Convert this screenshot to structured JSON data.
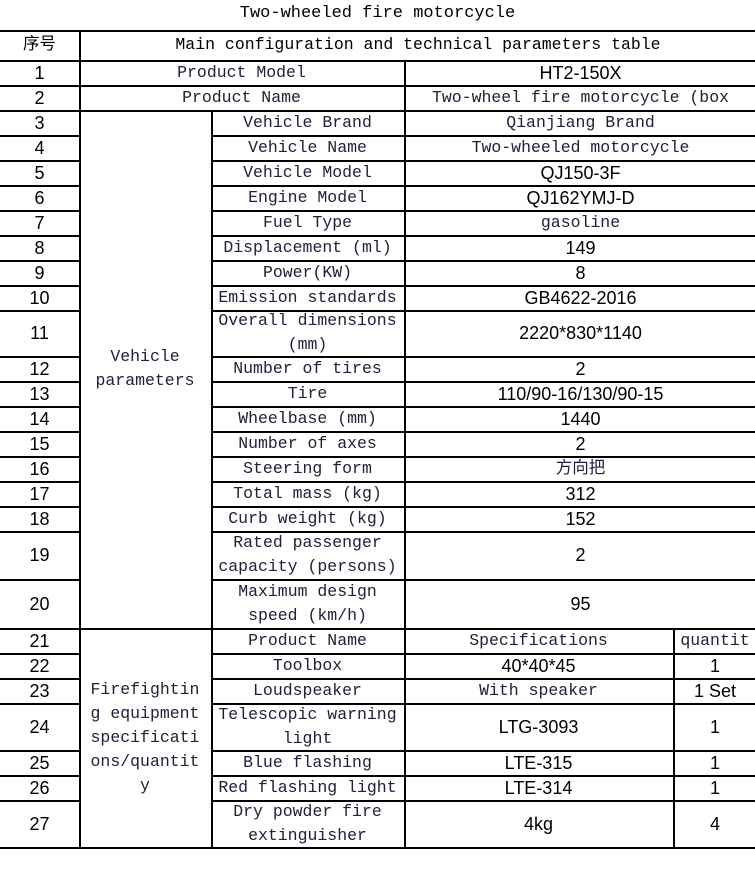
{
  "title": "Two-wheeled fire motorcycle",
  "header": {
    "no": "序号",
    "main": "Main configuration and technical parameters table"
  },
  "top_rows": [
    {
      "no": "1",
      "label": "Product Model",
      "value": "HT2-150X"
    },
    {
      "no": "2",
      "label": "Product Name",
      "value": "Two-wheel fire motorcycle (box"
    }
  ],
  "vehicle": {
    "group": "Vehicle parameters",
    "rows": [
      {
        "no": "3",
        "label": "Vehicle Brand",
        "value": "Qianjiang Brand"
      },
      {
        "no": "4",
        "label": "Vehicle Name",
        "value": "Two-wheeled motorcycle"
      },
      {
        "no": "5",
        "label": "Vehicle Model",
        "value": "QJ150-3F"
      },
      {
        "no": "6",
        "label": "Engine Model",
        "value": "QJ162YMJ-D"
      },
      {
        "no": "7",
        "label": "Fuel Type",
        "value": "gasoline"
      },
      {
        "no": "8",
        "label": "Displacement (ml)",
        "value": "149"
      },
      {
        "no": "9",
        "label": "Power(KW)",
        "value": "8"
      },
      {
        "no": "10",
        "label": "Emission standards",
        "value": "GB4622-2016"
      },
      {
        "no": "11",
        "label": "Overall dimensions (mm)",
        "value": "2220*830*1140"
      },
      {
        "no": "12",
        "label": "Number of tires",
        "value": "2"
      },
      {
        "no": "13",
        "label": "Tire",
        "value": "110/90-16/130/90-15"
      },
      {
        "no": "14",
        "label": "Wheelbase (mm)",
        "value": "1440"
      },
      {
        "no": "15",
        "label": "Number of axes",
        "value": "2"
      },
      {
        "no": "16",
        "label": "Steering form",
        "value": "方向把"
      },
      {
        "no": "17",
        "label": "Total mass (kg)",
        "value": "312"
      },
      {
        "no": "18",
        "label": "Curb weight (kg)",
        "value": "152"
      },
      {
        "no": "19",
        "label": "Rated passenger capacity (persons)",
        "value": "2"
      },
      {
        "no": "20",
        "label": "Maximum design speed (km/h)",
        "value": "95"
      }
    ]
  },
  "equipment": {
    "group": "Firefighting equipment specifications/quantity",
    "rows": [
      {
        "no": "21",
        "label": "Product Name",
        "spec": "Specifications",
        "qty": "quantit"
      },
      {
        "no": "22",
        "label": "Toolbox",
        "spec": "40*40*45",
        "qty": "1"
      },
      {
        "no": "23",
        "label": "Loudspeaker",
        "spec": "With speaker",
        "qty": "1 Set"
      },
      {
        "no": "24",
        "label": "Telescopic warning light",
        "spec": "LTG-3093",
        "qty": "1"
      },
      {
        "no": "25",
        "label": "Blue flashing",
        "spec": "LTE-315",
        "qty": "1"
      },
      {
        "no": "26",
        "label": "Red flashing light",
        "spec": "LTE-314",
        "qty": "1"
      },
      {
        "no": "27",
        "label": "Dry powder fire extinguisher",
        "spec": "4kg",
        "qty": "4"
      }
    ]
  }
}
